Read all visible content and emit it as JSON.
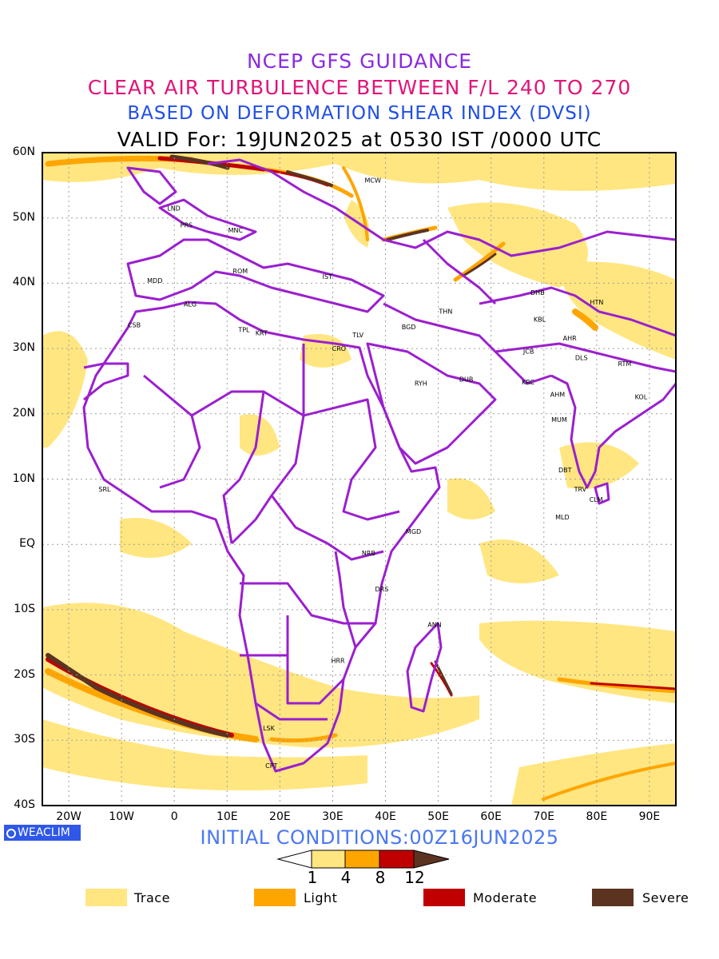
{
  "titles": {
    "line1": "NCEP GFS GUIDANCE",
    "line2": "CLEAR AIR TURBULENCE BETWEEN F/L 240 TO 270",
    "line3": "BASED ON DEFORMATION SHEAR INDEX (DVSI)",
    "line4": "VALID For: 19JUN2025 at 0530 IST /0000 UTC"
  },
  "colors": {
    "title1": "#8a2be2",
    "title2": "#e0157a",
    "title3": "#1f4fe6",
    "border": "#9b1fcf",
    "trace": "#ffe680",
    "light": "#ffa500",
    "moderate": "#c00000",
    "severe": "#5c3321"
  },
  "map": {
    "lat_labels": [
      "60N",
      "50N",
      "40N",
      "30N",
      "20N",
      "10N",
      "EQ",
      "10S",
      "20S",
      "30S",
      "40S"
    ],
    "lon_labels": [
      "20W",
      "10W",
      "0",
      "10E",
      "20E",
      "30E",
      "40E",
      "50E",
      "60E",
      "70E",
      "80E",
      "90E"
    ],
    "stations": [
      {
        "code": "MCW",
        "lon": 37.6,
        "lat": 55.8
      },
      {
        "code": "LND",
        "lon": -0.1,
        "lat": 51.5
      },
      {
        "code": "PRS",
        "lon": 2.3,
        "lat": 48.9
      },
      {
        "code": "MNC",
        "lon": 11.6,
        "lat": 48.1
      },
      {
        "code": "ROM",
        "lon": 12.5,
        "lat": 41.9
      },
      {
        "code": "IST",
        "lon": 29.0,
        "lat": 41.0
      },
      {
        "code": "MDD",
        "lon": -3.7,
        "lat": 40.4
      },
      {
        "code": "ALG",
        "lon": 3.0,
        "lat": 36.8
      },
      {
        "code": "CSB",
        "lon": -7.6,
        "lat": 33.6
      },
      {
        "code": "TPL",
        "lon": 13.2,
        "lat": 32.9
      },
      {
        "code": "KRT",
        "lon": 16.5,
        "lat": 32.4
      },
      {
        "code": "TLV",
        "lon": 34.8,
        "lat": 32.1
      },
      {
        "code": "CRO",
        "lon": 31.2,
        "lat": 30.0
      },
      {
        "code": "BGD",
        "lon": 44.4,
        "lat": 33.3
      },
      {
        "code": "THN",
        "lon": 51.4,
        "lat": 35.7
      },
      {
        "code": "DHB",
        "lon": 68.8,
        "lat": 38.6
      },
      {
        "code": "KBL",
        "lon": 69.2,
        "lat": 34.5
      },
      {
        "code": "HTN",
        "lon": 80.0,
        "lat": 37.1
      },
      {
        "code": "AHR",
        "lon": 74.9,
        "lat": 31.6
      },
      {
        "code": "DLS",
        "lon": 77.1,
        "lat": 28.6
      },
      {
        "code": "JCB",
        "lon": 67.1,
        "lat": 29.6
      },
      {
        "code": "RTM",
        "lon": 85.3,
        "lat": 27.7
      },
      {
        "code": "RYH",
        "lon": 46.7,
        "lat": 24.7
      },
      {
        "code": "DUB",
        "lon": 55.3,
        "lat": 25.3
      },
      {
        "code": "KRC",
        "lon": 67.0,
        "lat": 24.9
      },
      {
        "code": "AHM",
        "lon": 72.6,
        "lat": 23.0
      },
      {
        "code": "KOL",
        "lon": 88.4,
        "lat": 22.6
      },
      {
        "code": "MUM",
        "lon": 72.9,
        "lat": 19.1
      },
      {
        "code": "DBT",
        "lon": 74.0,
        "lat": 11.4
      },
      {
        "code": "TRV",
        "lon": 76.9,
        "lat": 8.5
      },
      {
        "code": "CLM",
        "lon": 79.9,
        "lat": 6.9
      },
      {
        "code": "MLD",
        "lon": 73.5,
        "lat": 4.2
      },
      {
        "code": "SRL",
        "lon": -13.2,
        "lat": 8.5
      },
      {
        "code": "MGD",
        "lon": 45.3,
        "lat": 2.0
      },
      {
        "code": "NRB",
        "lon": 36.8,
        "lat": -1.3
      },
      {
        "code": "DRS",
        "lon": 39.3,
        "lat": -6.8
      },
      {
        "code": "ANN",
        "lon": 49.3,
        "lat": -12.3
      },
      {
        "code": "HRR",
        "lon": 31.0,
        "lat": -17.8
      },
      {
        "code": "LSK",
        "lon": 17.9,
        "lat": -28.1
      },
      {
        "code": "CPT",
        "lon": 18.4,
        "lat": -33.9
      }
    ]
  },
  "badge": "WEACLIM",
  "initial_conditions": "INITIAL CONDITIONS:00Z16JUN2025",
  "colorbar": {
    "levels": [
      "1",
      "4",
      "8",
      "12"
    ],
    "colors": [
      "#ffe680",
      "#ffa500",
      "#c00000",
      "#5c3321"
    ]
  },
  "legend": [
    {
      "label": "Trace",
      "color": "#ffe680"
    },
    {
      "label": "Light",
      "color": "#ffa500"
    },
    {
      "label": "Moderate",
      "color": "#c00000"
    },
    {
      "label": "Severe",
      "color": "#5c3321"
    }
  ]
}
